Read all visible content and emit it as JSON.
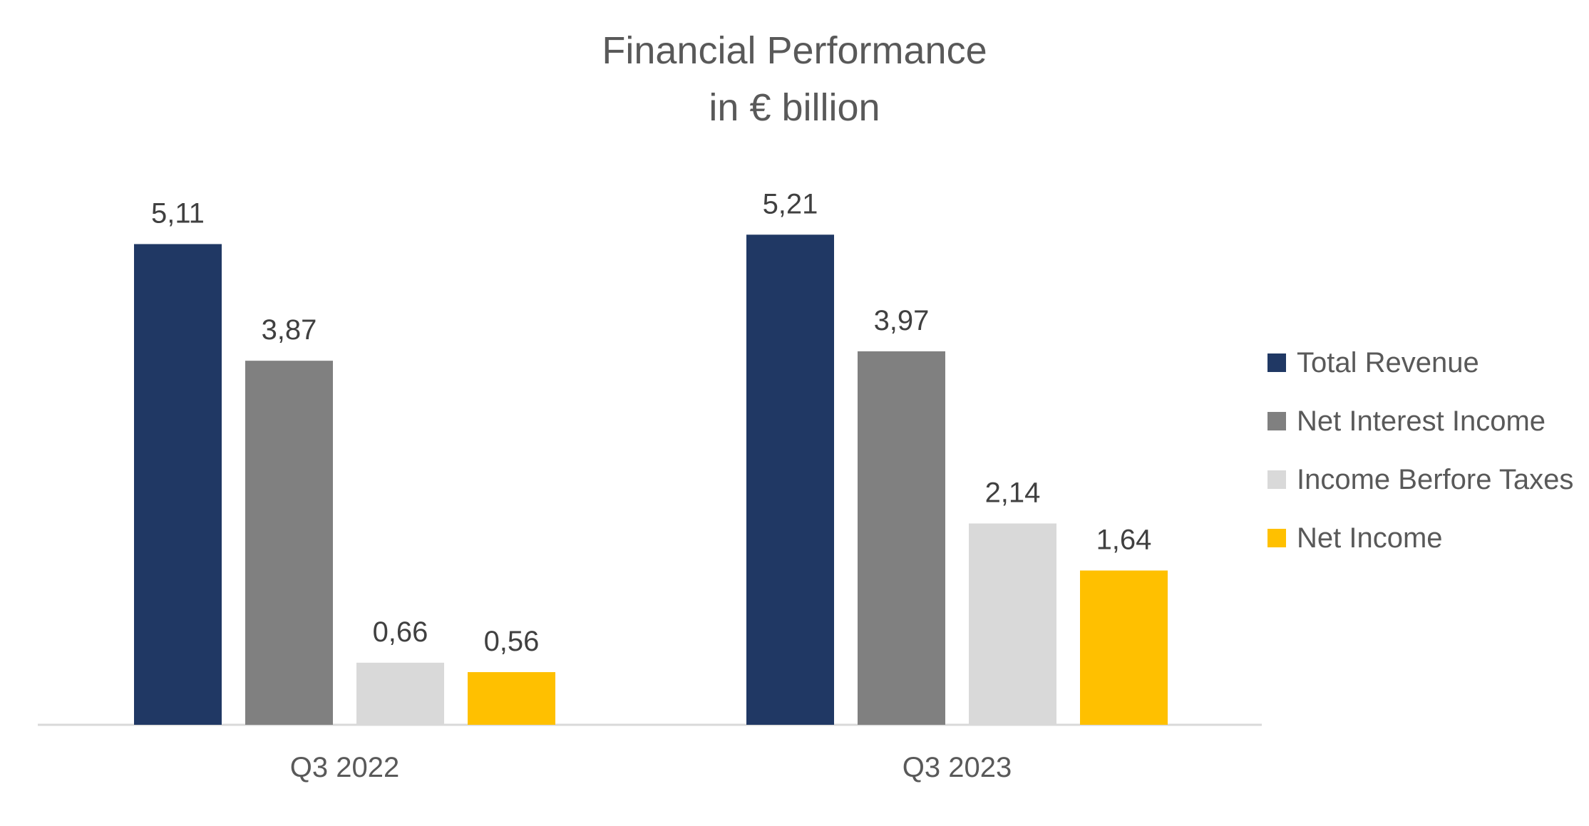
{
  "chart_data": {
    "type": "bar",
    "title": "Financial Performance",
    "subtitle": "in € billion",
    "categories": [
      "Q3 2022",
      "Q3 2023"
    ],
    "series": [
      {
        "name": "Total Revenue",
        "values": [
          5.11,
          5.21
        ],
        "labels": [
          "5,11",
          "5,21"
        ],
        "color": "#203864"
      },
      {
        "name": "Net Interest Income",
        "values": [
          3.87,
          3.97
        ],
        "labels": [
          "3,87",
          "3,97"
        ],
        "color": "#808080"
      },
      {
        "name": "Income Berfore Taxes",
        "values": [
          0.66,
          2.14
        ],
        "labels": [
          "0,66",
          "2,14"
        ],
        "color": "#D9D9D9"
      },
      {
        "name": "Net Income",
        "values": [
          0.56,
          1.64
        ],
        "labels": [
          "0,56",
          "1,64"
        ],
        "color": "#FFC000"
      }
    ],
    "ylim": [
      0,
      5.3
    ],
    "grid": false,
    "legend_position": "right"
  }
}
